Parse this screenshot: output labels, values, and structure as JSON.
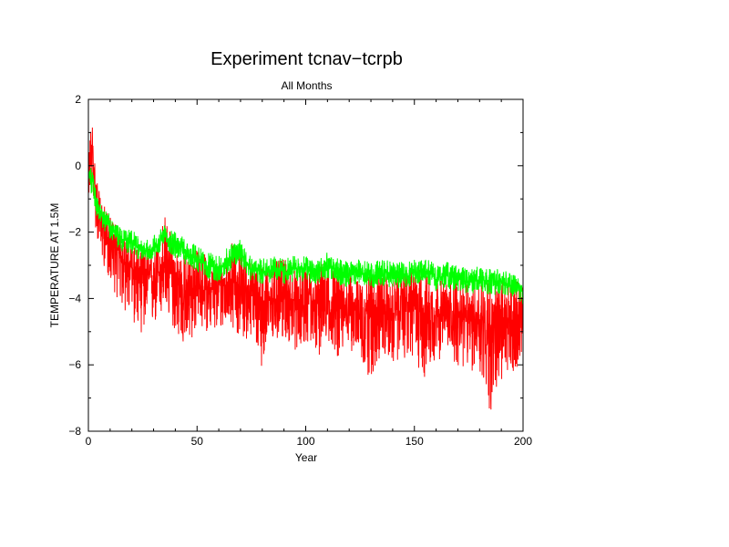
{
  "chart_data": {
    "type": "line",
    "title": "Experiment tcnav−tcrpb",
    "subtitle": "All Months",
    "xlabel": "Year",
    "ylabel": "TEMPERATURE AT 1.5M",
    "xlim": [
      0,
      200
    ],
    "ylim": [
      -8,
      2
    ],
    "xticks": [
      0,
      50,
      100,
      150,
      200
    ],
    "yticks": [
      2,
      0,
      -2,
      -4,
      -6,
      -8
    ],
    "grid": false,
    "legend": "none",
    "series": [
      {
        "color": "#ff0000",
        "x": [
          0,
          1,
          2,
          3,
          5,
          8,
          10,
          15,
          20,
          25,
          30,
          35,
          40,
          45,
          50,
          55,
          60,
          65,
          70,
          75,
          80,
          85,
          90,
          95,
          100,
          105,
          110,
          115,
          120,
          125,
          130,
          135,
          140,
          145,
          150,
          155,
          160,
          165,
          170,
          175,
          180,
          185,
          190,
          195,
          200
        ],
        "y": [
          -0.3,
          0.2,
          0.5,
          -0.8,
          -1.6,
          -2.0,
          -2.3,
          -2.7,
          -3.1,
          -3.3,
          -3.4,
          -3.0,
          -3.5,
          -3.8,
          -3.6,
          -3.7,
          -3.8,
          -3.4,
          -3.6,
          -3.9,
          -4.1,
          -4.0,
          -3.9,
          -4.1,
          -4.0,
          -4.2,
          -4.1,
          -4.3,
          -4.2,
          -4.4,
          -4.2,
          -4.3,
          -4.5,
          -4.2,
          -4.1,
          -4.3,
          -4.4,
          -4.6,
          -4.5,
          -4.7,
          -4.6,
          -4.8,
          -4.7,
          -4.6,
          -4.8
        ],
        "yrange_low": [
          -1.0,
          -0.8,
          -0.6,
          -1.8,
          -2.6,
          -3.2,
          -3.5,
          -4.3,
          -4.7,
          -5.1,
          -4.9,
          -4.5,
          -5.0,
          -5.7,
          -4.9,
          -5.0,
          -5.1,
          -4.7,
          -5.3,
          -5.2,
          -6.1,
          -5.4,
          -5.2,
          -5.6,
          -5.3,
          -5.9,
          -5.3,
          -5.8,
          -5.5,
          -5.9,
          -6.5,
          -5.7,
          -6.0,
          -5.8,
          -5.9,
          -6.5,
          -5.9,
          -5.7,
          -6.1,
          -6.2,
          -6.3,
          -7.5,
          -6.6,
          -6.5,
          -5.5
        ],
        "yrange_high": [
          0.3,
          1.2,
          1.4,
          0.2,
          -0.8,
          -1.3,
          -1.5,
          -1.9,
          -2.3,
          -2.4,
          -2.5,
          -1.4,
          -2.4,
          -2.7,
          -2.5,
          -2.7,
          -2.8,
          -2.3,
          -2.4,
          -2.9,
          -3.0,
          -2.9,
          -2.8,
          -3.1,
          -3.0,
          -3.0,
          -2.8,
          -3.2,
          -3.2,
          -3.5,
          -3.1,
          -3.2,
          -3.5,
          -3.1,
          -3.0,
          -3.2,
          -3.4,
          -3.5,
          -3.3,
          -3.5,
          -3.3,
          -3.4,
          -3.5,
          -3.4,
          -3.6
        ]
      },
      {
        "color": "#00ff00",
        "x": [
          0,
          1,
          2,
          3,
          5,
          8,
          10,
          15,
          20,
          25,
          30,
          35,
          40,
          45,
          50,
          55,
          60,
          65,
          70,
          75,
          80,
          85,
          90,
          95,
          100,
          105,
          110,
          115,
          120,
          125,
          130,
          135,
          140,
          145,
          150,
          155,
          160,
          165,
          170,
          175,
          180,
          185,
          190,
          195,
          200
        ],
        "y": [
          -0.2,
          -0.3,
          -0.5,
          -0.9,
          -1.4,
          -1.6,
          -1.8,
          -2.2,
          -2.3,
          -2.6,
          -2.5,
          -2.1,
          -2.4,
          -2.6,
          -2.8,
          -3.0,
          -3.1,
          -2.8,
          -2.6,
          -3.1,
          -3.2,
          -3.1,
          -3.2,
          -3.1,
          -3.1,
          -3.2,
          -3.0,
          -3.2,
          -3.3,
          -3.2,
          -3.3,
          -3.2,
          -3.3,
          -3.3,
          -3.2,
          -3.1,
          -3.4,
          -3.3,
          -3.4,
          -3.5,
          -3.4,
          -3.5,
          -3.5,
          -3.6,
          -3.8
        ],
        "yrange_low": [
          -0.7,
          -0.8,
          -1.0,
          -1.3,
          -1.8,
          -2.0,
          -2.2,
          -2.6,
          -2.7,
          -2.9,
          -2.8,
          -2.5,
          -2.8,
          -3.0,
          -3.2,
          -3.4,
          -3.5,
          -3.2,
          -3.0,
          -3.5,
          -3.6,
          -3.5,
          -3.6,
          -3.5,
          -3.5,
          -3.6,
          -3.4,
          -3.6,
          -3.7,
          -3.6,
          -3.7,
          -3.6,
          -3.7,
          -3.7,
          -3.6,
          -3.5,
          -3.8,
          -3.7,
          -3.8,
          -3.9,
          -3.8,
          -3.9,
          -3.9,
          -4.0,
          -4.2
        ],
        "yrange_high": [
          0.1,
          0.0,
          -0.2,
          -0.6,
          -1.1,
          -1.3,
          -1.5,
          -1.9,
          -1.9,
          -2.3,
          -2.1,
          -1.8,
          -2.0,
          -2.2,
          -2.4,
          -2.6,
          -2.7,
          -2.4,
          -2.1,
          -2.7,
          -2.8,
          -2.7,
          -2.8,
          -2.7,
          -2.7,
          -2.8,
          -2.6,
          -2.8,
          -2.9,
          -2.8,
          -2.9,
          -2.8,
          -2.9,
          -2.9,
          -2.8,
          -2.7,
          -3.0,
          -2.9,
          -3.0,
          -3.1,
          -3.0,
          -3.1,
          -3.1,
          -3.2,
          -3.4
        ]
      }
    ]
  }
}
